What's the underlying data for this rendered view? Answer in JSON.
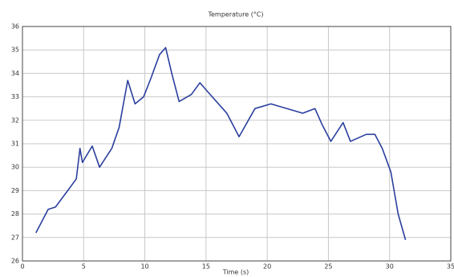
{
  "chart_data": {
    "type": "line",
    "title": "Temperature (°C)",
    "x_label": "Time (s)",
    "x": [
      1.1,
      2.1,
      2.7,
      3.7,
      4.4,
      4.7,
      4.9,
      5.7,
      6.3,
      7.3,
      7.9,
      8.6,
      9.2,
      9.9,
      10.5,
      11.2,
      11.7,
      12.2,
      12.8,
      13.8,
      14.5,
      15.0,
      16.7,
      17.7,
      19.0,
      20.3,
      22.9,
      23.9,
      24.5,
      25.2,
      26.2,
      26.8,
      28.1,
      28.8,
      29.4,
      30.1,
      30.7,
      31.3
    ],
    "series": [
      {
        "name": "Temperature",
        "color": "#2b3f9e",
        "values": [
          27.2,
          28.2,
          28.3,
          29.0,
          29.5,
          30.8,
          30.2,
          30.9,
          30.0,
          30.8,
          31.7,
          33.7,
          32.7,
          33.0,
          33.8,
          34.8,
          35.1,
          34.0,
          32.8,
          33.1,
          33.6,
          33.3,
          32.3,
          31.3,
          32.5,
          32.7,
          32.3,
          32.5,
          31.8,
          31.1,
          31.9,
          31.1,
          31.4,
          31.4,
          30.8,
          29.8,
          28.0,
          26.9
        ]
      }
    ],
    "xlim": [
      0,
      35
    ],
    "xticks": [
      0,
      5,
      10,
      15,
      20,
      25,
      30,
      35
    ],
    "ylim": [
      26,
      36
    ],
    "yticks": [
      26,
      27,
      28,
      29,
      30,
      31,
      32,
      33,
      34,
      35,
      36
    ],
    "grid": true
  }
}
